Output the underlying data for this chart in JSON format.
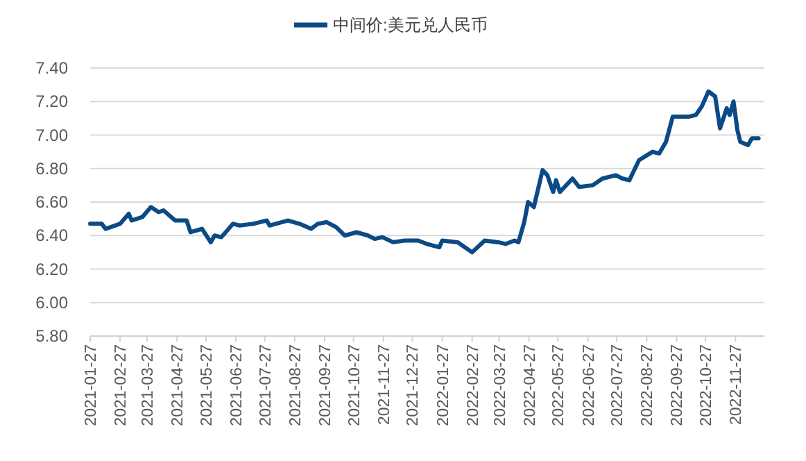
{
  "chart_data": {
    "type": "line",
    "legend": "top",
    "grid": "y",
    "xlim": [
      "2021-01-27",
      "2022-12-27"
    ],
    "xticks": [
      "2021-01-27",
      "2021-02-27",
      "2021-03-27",
      "2021-04-27",
      "2021-05-27",
      "2021-06-27",
      "2021-07-27",
      "2021-08-27",
      "2021-09-27",
      "2021-10-27",
      "2021-11-27",
      "2021-12-27",
      "2022-01-27",
      "2022-02-27",
      "2022-03-27",
      "2022-04-27",
      "2022-05-27",
      "2022-06-27",
      "2022-07-27",
      "2022-08-27",
      "2022-09-27",
      "2022-10-27",
      "2022-11-27"
    ],
    "ylim": [
      5.8,
      7.4
    ],
    "yticks": [
      {
        "value": 5.8,
        "label": "5.80"
      },
      {
        "value": 6.0,
        "label": "6.00"
      },
      {
        "value": 6.2,
        "label": "6.20"
      },
      {
        "value": 6.4,
        "label": "6.40"
      },
      {
        "value": 6.6,
        "label": "6.60"
      },
      {
        "value": 6.8,
        "label": "6.80"
      },
      {
        "value": 7.0,
        "label": "7.00"
      },
      {
        "value": 7.2,
        "label": "7.20"
      },
      {
        "value": 7.4,
        "label": "7.40"
      }
    ],
    "x": [
      "2021-01-27",
      "2021-02-08",
      "2021-02-12",
      "2021-02-27",
      "2021-03-08",
      "2021-03-11",
      "2021-03-22",
      "2021-03-31",
      "2021-04-08",
      "2021-04-13",
      "2021-04-25",
      "2021-05-07",
      "2021-05-11",
      "2021-05-23",
      "2021-06-01",
      "2021-06-05",
      "2021-06-12",
      "2021-06-24",
      "2021-07-01",
      "2021-07-15",
      "2021-07-29",
      "2021-08-01",
      "2021-08-20",
      "2021-09-01",
      "2021-09-13",
      "2021-09-20",
      "2021-09-29",
      "2021-10-09",
      "2021-10-18",
      "2021-10-30",
      "2021-11-11",
      "2021-11-18",
      "2021-11-26",
      "2021-12-07",
      "2021-12-19",
      "2021-12-28",
      "2022-01-02",
      "2022-01-11",
      "2022-01-24",
      "2022-01-27",
      "2022-02-12",
      "2022-02-17",
      "2022-02-27",
      "2022-03-12",
      "2022-03-26",
      "2022-04-03",
      "2022-04-12",
      "2022-04-16",
      "2022-04-22",
      "2022-04-26",
      "2022-05-02",
      "2022-05-11",
      "2022-05-16",
      "2022-05-22",
      "2022-05-25",
      "2022-05-29",
      "2022-06-11",
      "2022-06-18",
      "2022-07-02",
      "2022-07-12",
      "2022-07-26",
      "2022-08-02",
      "2022-08-09",
      "2022-08-19",
      "2022-09-02",
      "2022-09-09",
      "2022-09-16",
      "2022-09-23",
      "2022-10-10",
      "2022-10-17",
      "2022-10-23",
      "2022-10-30",
      "2022-11-06",
      "2022-11-11",
      "2022-11-18",
      "2022-11-21",
      "2022-11-25",
      "2022-11-29",
      "2022-12-02",
      "2022-12-10",
      "2022-12-14",
      "2022-12-21"
    ],
    "series": [
      {
        "name": "中间价:美元兑人民币",
        "color": "#0b4a85",
        "values": [
          6.47,
          6.47,
          6.44,
          6.47,
          6.53,
          6.49,
          6.51,
          6.57,
          6.54,
          6.55,
          6.49,
          6.49,
          6.42,
          6.44,
          6.36,
          6.4,
          6.39,
          6.47,
          6.46,
          6.47,
          6.49,
          6.46,
          6.49,
          6.47,
          6.44,
          6.47,
          6.48,
          6.45,
          6.4,
          6.42,
          6.4,
          6.38,
          6.39,
          6.36,
          6.37,
          6.37,
          6.37,
          6.35,
          6.33,
          6.37,
          6.36,
          6.34,
          6.3,
          6.37,
          6.36,
          6.35,
          6.37,
          6.36,
          6.48,
          6.6,
          6.57,
          6.79,
          6.76,
          6.66,
          6.73,
          6.66,
          6.74,
          6.69,
          6.7,
          6.74,
          6.76,
          6.74,
          6.73,
          6.85,
          6.9,
          6.89,
          6.96,
          7.11,
          7.11,
          7.12,
          7.17,
          7.26,
          7.23,
          7.04,
          7.16,
          7.12,
          7.2,
          7.03,
          6.96,
          6.94,
          6.98,
          6.98
        ]
      }
    ]
  }
}
